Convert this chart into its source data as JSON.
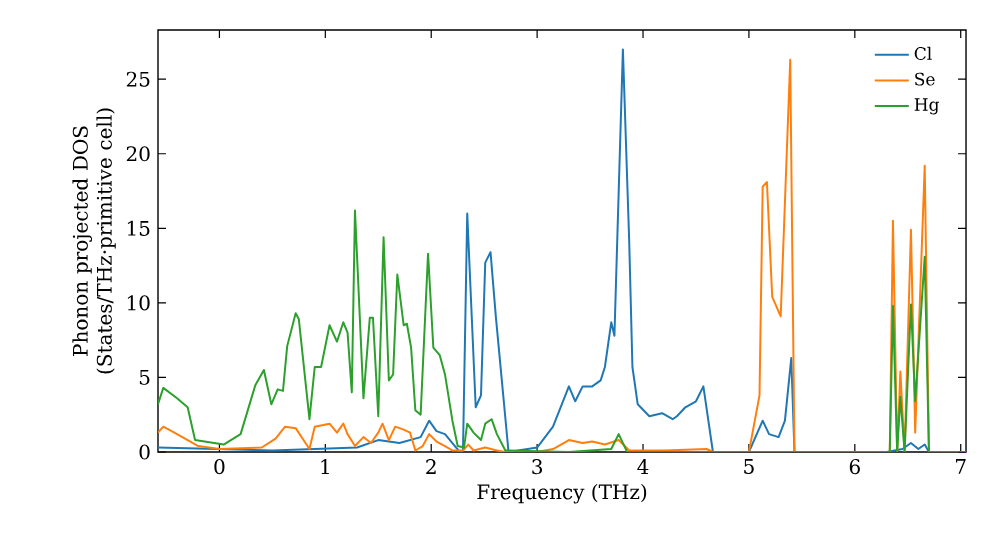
{
  "chart_data": {
    "type": "line",
    "xlabel": "Frequency (THz)",
    "ylabel": "Phonon projected DOS (States/THz·primitive cell)",
    "xlim": [
      -0.58,
      7.05
    ],
    "ylim": [
      0,
      28.3
    ],
    "xticks": [
      0,
      1,
      2,
      3,
      4,
      5,
      6,
      7
    ],
    "yticks": [
      0,
      5,
      10,
      15,
      20,
      25
    ],
    "legend": "top right",
    "grid": false,
    "marker": "none",
    "line_style": "solid",
    "series": [
      {
        "name": "Cl",
        "color": "#1f77b4",
        "x": [
          -0.58,
          0.5,
          1.3,
          1.5,
          1.7,
          1.9,
          1.98,
          2.05,
          2.13,
          2.2,
          2.27,
          2.3,
          2.34,
          2.42,
          2.47,
          2.51,
          2.56,
          2.61,
          2.68,
          2.73,
          3.0,
          3.15,
          3.3,
          3.36,
          3.43,
          3.52,
          3.6,
          3.64,
          3.7,
          3.73,
          3.81,
          3.87,
          3.9,
          3.95,
          4.06,
          4.18,
          4.28,
          4.32,
          4.4,
          4.5,
          4.57,
          4.66,
          5.0,
          5.13,
          5.19,
          5.28,
          5.34,
          5.4,
          5.43,
          6.3,
          6.45,
          6.53,
          6.6,
          6.66,
          6.7,
          7.05
        ],
        "values": [
          0.3,
          0.1,
          0.3,
          0.8,
          0.6,
          1.0,
          2.1,
          1.4,
          1.2,
          0.6,
          0,
          0.1,
          16,
          3,
          3.8,
          12.7,
          13.4,
          9.1,
          3.8,
          0,
          0.3,
          1.7,
          4.4,
          3.4,
          4.4,
          4.4,
          4.8,
          5.7,
          8.7,
          7.8,
          27,
          14,
          5.7,
          3.2,
          2.4,
          2.6,
          2.2,
          2.4,
          3.0,
          3.4,
          4.4,
          0,
          0,
          2.1,
          1.2,
          1.0,
          2.1,
          6.3,
          0,
          0,
          0.2,
          0.6,
          0.2,
          0.5,
          0,
          0
        ]
      },
      {
        "name": "Se",
        "color": "#ff7f0e",
        "x": [
          -0.58,
          -0.53,
          -0.4,
          -0.3,
          -0.2,
          0,
          0.4,
          0.53,
          0.62,
          0.72,
          0.85,
          0.9,
          1.04,
          1.11,
          1.17,
          1.21,
          1.28,
          1.36,
          1.43,
          1.5,
          1.54,
          1.6,
          1.66,
          1.74,
          1.8,
          1.85,
          1.92,
          1.98,
          2.05,
          2.13,
          2.2,
          2.3,
          2.35,
          2.4,
          2.51,
          2.62,
          2.7,
          3.0,
          3.15,
          3.3,
          3.43,
          3.52,
          3.64,
          3.77,
          3.87,
          4.2,
          4.6,
          4.66,
          5.0,
          5.1,
          5.13,
          5.17,
          5.22,
          5.3,
          5.39,
          5.43,
          6.33,
          6.36,
          6.4,
          6.43,
          6.47,
          6.53,
          6.57,
          6.66,
          6.7,
          7.05
        ],
        "values": [
          1.3,
          1.7,
          1.2,
          0.8,
          0.4,
          0.2,
          0.3,
          0.9,
          1.7,
          1.6,
          0.2,
          1.7,
          1.9,
          1.3,
          1.9,
          1.2,
          0.4,
          1.0,
          0.6,
          1.3,
          1.9,
          0.8,
          1.7,
          1.5,
          1.3,
          0.1,
          0.4,
          1.2,
          0.7,
          0.4,
          0.1,
          0.1,
          0.5,
          0.1,
          0.3,
          0.1,
          0,
          0,
          0.2,
          0.8,
          0.6,
          0.7,
          0.5,
          0.8,
          0.1,
          0.1,
          0.2,
          0,
          0,
          3.8,
          17.8,
          18.1,
          10.4,
          9.1,
          26.3,
          0,
          0,
          15.5,
          0,
          5.4,
          0,
          14.9,
          1.3,
          19.2,
          0,
          0
        ]
      },
      {
        "name": "Hg",
        "color": "#2ca02c",
        "x": [
          -0.58,
          -0.53,
          -0.4,
          -0.3,
          -0.23,
          0.04,
          0.2,
          0.34,
          0.42,
          0.49,
          0.55,
          0.6,
          0.64,
          0.72,
          0.75,
          0.85,
          0.9,
          0.96,
          1.04,
          1.11,
          1.17,
          1.21,
          1.25,
          1.28,
          1.36,
          1.42,
          1.45,
          1.5,
          1.55,
          1.6,
          1.64,
          1.68,
          1.74,
          1.77,
          1.81,
          1.85,
          1.9,
          1.97,
          2.02,
          2.08,
          2.13,
          2.2,
          2.25,
          2.31,
          2.34,
          2.4,
          2.47,
          2.51,
          2.57,
          2.62,
          2.7,
          3.3,
          3.7,
          3.77,
          3.85,
          6.33,
          6.36,
          6.4,
          6.43,
          6.47,
          6.53,
          6.57,
          6.66,
          6.7,
          7.05
        ],
        "values": [
          3.2,
          4.3,
          3.6,
          3.0,
          0.8,
          0.5,
          1.2,
          4.5,
          5.5,
          3.2,
          4.2,
          4.1,
          7.1,
          9.3,
          8.9,
          2.2,
          5.7,
          5.7,
          8.5,
          7.4,
          8.7,
          8.0,
          4.0,
          16.2,
          3.6,
          9.0,
          9.0,
          2.4,
          14.4,
          4.8,
          5.2,
          11.9,
          8.5,
          8.6,
          7.0,
          2.8,
          2.5,
          13.3,
          7.0,
          6.5,
          5.2,
          2.1,
          0.4,
          0.3,
          1.9,
          1.3,
          0.8,
          1.9,
          2.2,
          1.2,
          0.1,
          0,
          0.2,
          1.2,
          0,
          0,
          9.8,
          0,
          3.7,
          0,
          9.9,
          3.4,
          13.1,
          0,
          0
        ]
      }
    ]
  }
}
